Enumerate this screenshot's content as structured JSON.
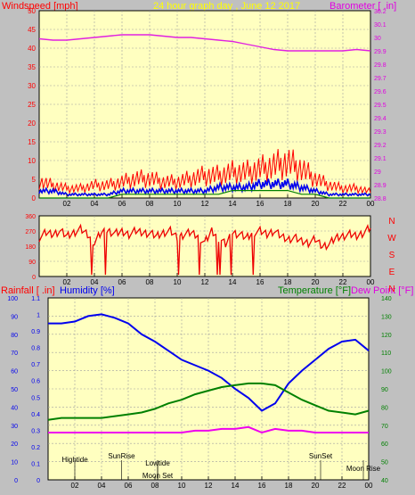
{
  "chart_data": [
    {
      "type": "line",
      "title": "24 hour graph day , June 12 2017",
      "left_axis_label": "Windspeed [mph]",
      "right_axis_label": "Barometer [ .in]",
      "left_ticks": [
        "0",
        "5",
        "10",
        "15",
        "20",
        "25",
        "30",
        "35",
        "40",
        "45",
        "50"
      ],
      "right_ticks": [
        "28.8",
        "28.9",
        "29",
        "29.1",
        "29.2",
        "29.3",
        "29.4",
        "29.5",
        "29.6",
        "29.7",
        "29.8",
        "29.9",
        "30",
        "30.1",
        "30.2"
      ],
      "x_ticks": [
        "02",
        "04",
        "06",
        "08",
        "10",
        "12",
        "14",
        "16",
        "18",
        "20",
        "22",
        "00"
      ],
      "xlim": [
        0,
        24
      ],
      "ylim_left": [
        0,
        50
      ],
      "ylim_right": [
        28.8,
        30.2
      ],
      "grid": true,
      "series": [
        {
          "key": "baro",
          "axis": "right",
          "color": "#e020e0",
          "x": [
            0,
            1,
            2,
            3,
            4,
            5,
            6,
            7,
            8,
            9,
            10,
            11,
            12,
            13,
            14,
            15,
            16,
            17,
            18,
            19,
            20,
            21,
            22,
            23,
            24
          ],
          "y": [
            29.99,
            29.98,
            29.98,
            29.99,
            30.0,
            30.01,
            30.02,
            30.02,
            30.02,
            30.01,
            30.0,
            30.0,
            29.99,
            29.98,
            29.97,
            29.95,
            29.93,
            29.91,
            29.9,
            29.9,
            29.9,
            29.9,
            29.9,
            29.91,
            29.9
          ]
        },
        {
          "key": "gust",
          "axis": "left",
          "color": "#ff0000",
          "x": [
            0,
            1,
            2,
            3,
            4,
            5,
            6,
            7,
            8,
            9,
            10,
            11,
            12,
            13,
            14,
            15,
            16,
            17,
            18,
            19,
            20,
            21,
            22,
            23,
            24
          ],
          "y": [
            5,
            4,
            3,
            3,
            4,
            4,
            5,
            6,
            6,
            5,
            5,
            6,
            7,
            7,
            8,
            8,
            9,
            10,
            11,
            9,
            6,
            4,
            3,
            3,
            2
          ]
        },
        {
          "key": "avg",
          "axis": "left",
          "color": "#0000ee",
          "x": [
            0,
            1,
            2,
            3,
            4,
            5,
            6,
            7,
            8,
            9,
            10,
            11,
            12,
            13,
            14,
            15,
            16,
            17,
            18,
            19,
            20,
            21,
            22,
            23,
            24
          ],
          "y": [
            2,
            2,
            1,
            1,
            1,
            1,
            2,
            2,
            2,
            2,
            2,
            2,
            2,
            3,
            3,
            3,
            4,
            4,
            4,
            3,
            2,
            1,
            1,
            1,
            1
          ]
        },
        {
          "key": "calm",
          "axis": "left",
          "color": "#008000",
          "x": [
            0,
            1,
            2,
            3,
            4,
            5,
            6,
            7,
            8,
            9,
            10,
            11,
            12,
            13,
            14,
            15,
            16,
            17,
            18,
            19,
            20,
            21,
            22,
            23,
            24
          ],
          "y": [
            0,
            0,
            0,
            0,
            0,
            0,
            1,
            1,
            1,
            1,
            1,
            1,
            1,
            1,
            2,
            2,
            2,
            2,
            2,
            1,
            1,
            0,
            0,
            0,
            0
          ]
        }
      ]
    },
    {
      "type": "line",
      "left_ticks": [
        "0",
        "90",
        "180",
        "270",
        "360"
      ],
      "right_labels": [
        "N",
        "W",
        "S",
        "E",
        "N"
      ],
      "x_ticks": [
        "02",
        "04",
        "06",
        "08",
        "10",
        "12",
        "14",
        "16",
        "18",
        "20",
        "22",
        "00"
      ],
      "xlim": [
        0,
        24
      ],
      "ylim": [
        0,
        360
      ],
      "grid": true,
      "series": [
        {
          "key": "dir",
          "color": "#ee0000",
          "x": [
            0,
            0.5,
            1,
            1.5,
            2,
            2.5,
            3,
            3.5,
            4,
            4.5,
            5,
            5.5,
            6,
            6.5,
            7,
            7.5,
            8,
            8.5,
            9,
            9.5,
            10,
            10.5,
            11,
            11.5,
            12,
            12.5,
            13,
            13.5,
            14,
            14.5,
            15,
            15.5,
            16,
            16.5,
            17,
            17.5,
            18,
            18.5,
            19,
            19.5,
            20,
            20.5,
            21,
            21.5,
            22,
            22.5,
            23,
            23.5,
            24
          ],
          "y": [
            230,
            260,
            250,
            270,
            240,
            260,
            280,
            250,
            200,
            260,
            270,
            255,
            265,
            250,
            270,
            260,
            255,
            240,
            260,
            270,
            230,
            250,
            260,
            240,
            200,
            270,
            230,
            190,
            260,
            250,
            230,
            260,
            270,
            250,
            270,
            240,
            220,
            230,
            210,
            200,
            220,
            180,
            190,
            230,
            240,
            250,
            240,
            260,
            290
          ]
        }
      ]
    },
    {
      "type": "line",
      "left_axis_label_1": "Rainfall [ .in]",
      "left_axis_label_2": "Humidity [%]",
      "right_axis_label_1": "Temperature [°F]",
      "right_axis_label_2": "Dew Point [°F]",
      "humidity_ticks": [
        "0",
        "10",
        "20",
        "30",
        "40",
        "50",
        "60",
        "70",
        "80",
        "90",
        "100"
      ],
      "rain_ticks": [
        "0",
        "0.1",
        "0.2",
        "0.3",
        "0.4",
        "0.5",
        "0.6",
        "0.7",
        "0.8",
        "0.9",
        "1",
        "1.1"
      ],
      "temp_ticks": [
        "40",
        "50",
        "60",
        "70",
        "80",
        "90",
        "100",
        "110",
        "120",
        "130",
        "140"
      ],
      "x_ticks": [
        "02",
        "04",
        "06",
        "08",
        "10",
        "12",
        "14",
        "16",
        "18",
        "20",
        "22",
        "00"
      ],
      "xlim": [
        0,
        24
      ],
      "ylim_humidity": [
        0,
        100
      ],
      "ylim_temp": [
        40,
        140
      ],
      "grid": true,
      "events": [
        {
          "label": "Hightide",
          "x": 2.0
        },
        {
          "label": "SunRise",
          "x": 5.5
        },
        {
          "label": "Lowtide",
          "x": 8.2
        },
        {
          "label": "Moon Set",
          "x": 8.2
        },
        {
          "label": "SunSet",
          "x": 20.4
        },
        {
          "label": "Moon Rise",
          "x": 23.6
        }
      ],
      "series": [
        {
          "key": "humidity",
          "axis": "humidity",
          "color": "#0000ee",
          "x": [
            0,
            1,
            2,
            3,
            4,
            5,
            6,
            7,
            8,
            9,
            10,
            11,
            12,
            13,
            14,
            15,
            16,
            17,
            18,
            19,
            20,
            21,
            22,
            23,
            24
          ],
          "y": [
            86,
            86,
            87,
            90,
            91,
            89,
            86,
            80,
            76,
            71,
            66,
            63,
            60,
            56,
            50,
            45,
            38,
            42,
            53,
            60,
            66,
            72,
            76,
            77,
            71
          ]
        },
        {
          "key": "temperature",
          "axis": "temp",
          "color": "#008000",
          "x": [
            0,
            1,
            2,
            3,
            4,
            5,
            6,
            7,
            8,
            9,
            10,
            11,
            12,
            13,
            14,
            15,
            16,
            17,
            18,
            19,
            20,
            21,
            22,
            23,
            24
          ],
          "y": [
            73,
            74,
            74,
            74,
            74,
            75,
            76,
            77,
            79,
            82,
            84,
            87,
            89,
            91,
            92,
            93,
            93,
            92,
            88,
            84,
            81,
            78,
            77,
            76,
            78
          ]
        },
        {
          "key": "dewpoint",
          "axis": "temp",
          "color": "#ee00ee",
          "x": [
            0,
            1,
            2,
            3,
            4,
            5,
            6,
            7,
            8,
            9,
            10,
            11,
            12,
            13,
            14,
            15,
            16,
            17,
            18,
            19,
            20,
            21,
            22,
            23,
            24
          ],
          "y": [
            66,
            66,
            66,
            66,
            66,
            66,
            66,
            66,
            66,
            66,
            66,
            67,
            67,
            68,
            68,
            69,
            66,
            68,
            67,
            67,
            66,
            66,
            66,
            66,
            66
          ]
        }
      ]
    }
  ],
  "colors": {
    "plot_bg": "#ffffc0",
    "frame_bg": "#c0c0c0",
    "axis_red": "#ff0000",
    "axis_magenta": "#e000e0",
    "axis_blue": "#0000ee",
    "axis_green": "#008000",
    "title_yellow": "#ffff00"
  }
}
